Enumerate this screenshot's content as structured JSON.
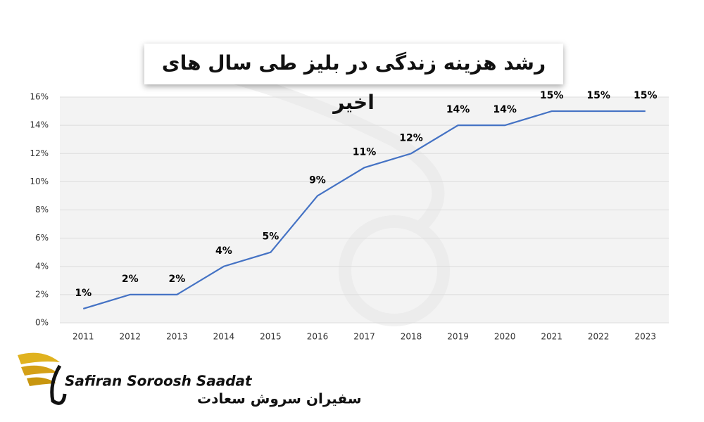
{
  "chart_data": {
    "type": "line",
    "title": "رشد هزینه زندگی در بلیز طی سال های اخیر",
    "categories": [
      "2011",
      "2012",
      "2013",
      "2014",
      "2015",
      "2016",
      "2017",
      "2018",
      "2019",
      "2020",
      "2021",
      "2022",
      "2023"
    ],
    "values": [
      1,
      2,
      2,
      4,
      5,
      9,
      11,
      12,
      14,
      14,
      15,
      15,
      15
    ],
    "value_labels": [
      "1%",
      "2%",
      "2%",
      "4%",
      "5%",
      "9%",
      "11%",
      "12%",
      "14%",
      "14%",
      "15%",
      "15%",
      "15%"
    ],
    "color": "#4472c4",
    "ylim": [
      0,
      16
    ],
    "yticks": [
      {
        "value": 0,
        "label": "0%"
      },
      {
        "value": 2,
        "label": "2%"
      },
      {
        "value": 4,
        "label": "4%"
      },
      {
        "value": 6,
        "label": "6%"
      },
      {
        "value": 8,
        "label": "8%"
      },
      {
        "value": 10,
        "label": "10%"
      },
      {
        "value": 12,
        "label": "12%"
      },
      {
        "value": 14,
        "label": "14%"
      },
      {
        "value": 16,
        "label": "16%"
      }
    ],
    "grid": true
  },
  "logo": {
    "name_en": "Safiran Soroosh Saadat",
    "name_fa": "سفیران سروش سعادت"
  }
}
